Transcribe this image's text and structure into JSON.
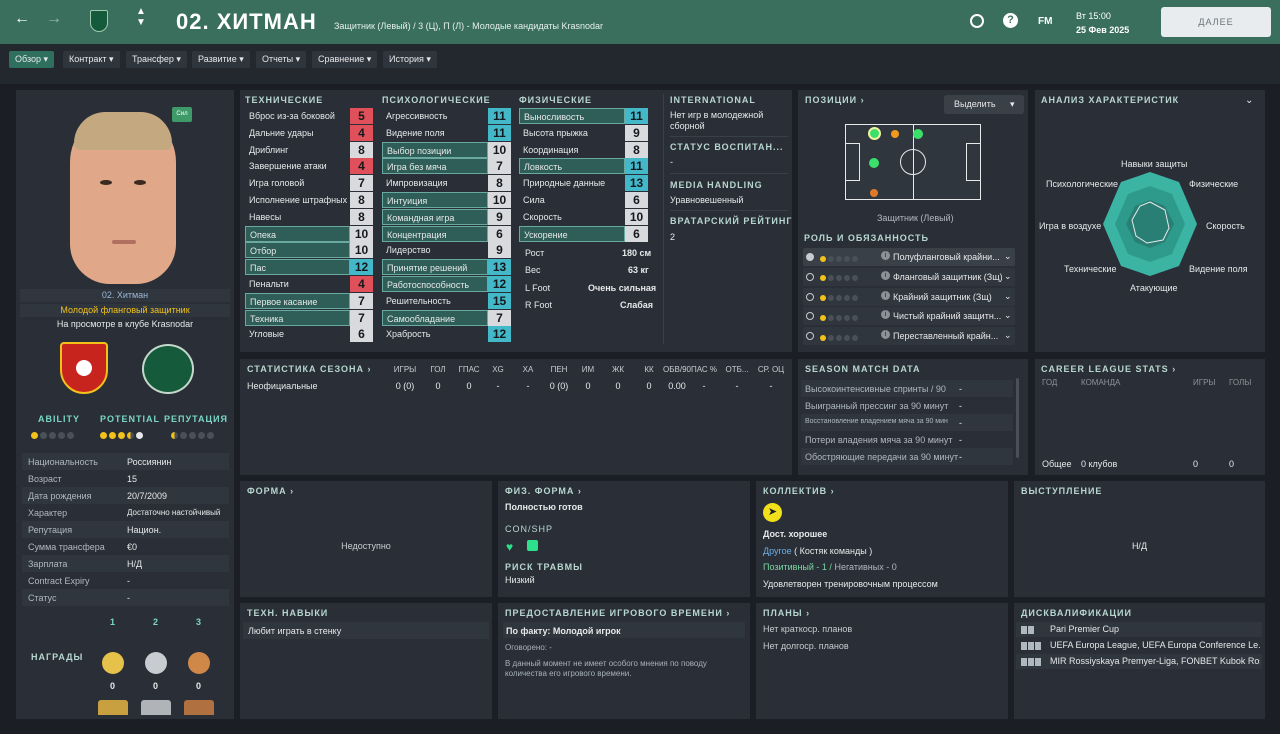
{
  "header": {
    "number_name": "02. ХИТМАН",
    "subtitle": "Защитник (Левый) / 3 (Ц), П (Л) - Молодые кандидаты Krasnodar",
    "date_line1": "Вт 15:00",
    "date_line2": "25 Фев 2025",
    "fm_label": "FM",
    "continue_label": "ДАЛЕЕ"
  },
  "tabs": [
    {
      "label": "Обзор"
    },
    {
      "label": "Контракт"
    },
    {
      "label": "Трансфер"
    },
    {
      "label": "Развитие"
    },
    {
      "label": "Отчеты"
    },
    {
      "label": "Сравнение"
    },
    {
      "label": "История"
    }
  ],
  "profile": {
    "badge": "Сил",
    "name": "02. Хитман",
    "role": "Молодой фланговый защитник",
    "status": "На просмотре в клубе Krasnodar",
    "ability_label": "ABILITY",
    "potential_label": "POTENTIAL",
    "reputation_label": "РЕПУТАЦИЯ",
    "ability_stars": 1,
    "potential_stars": 3.5,
    "reputation_stars": 0.5,
    "details": [
      {
        "label": "Национальность",
        "value": "Россиянин"
      },
      {
        "label": "Возраст",
        "value": "15"
      },
      {
        "label": "Дата рождения",
        "value": "20/7/2009"
      },
      {
        "label": "Характер",
        "value": "Достаточно настойчивый"
      },
      {
        "label": "Репутация",
        "value": "Национ."
      },
      {
        "label": "Сумма трансфера",
        "value": "€0"
      },
      {
        "label": "Зарплата",
        "value": "Н/Д"
      },
      {
        "label": "Contract Expiry",
        "value": "-"
      },
      {
        "label": "Статус",
        "value": "-"
      }
    ],
    "awards_label": "НАГРАДЫ",
    "awards": [
      {
        "place": "1",
        "count": "0"
      },
      {
        "place": "2",
        "count": "0"
      },
      {
        "place": "3",
        "count": "0"
      }
    ]
  },
  "attributes": {
    "technical_title": "ТЕХНИЧЕСКИЕ",
    "mental_title": "ПСИХОЛОГИЧЕСКИЕ",
    "physical_title": "ФИЗИЧЕСКИЕ",
    "technical": [
      {
        "name": "Вброс из-за боковой",
        "value": "5",
        "hl": false
      },
      {
        "name": "Дальние удары",
        "value": "4",
        "hl": false
      },
      {
        "name": "Дриблинг",
        "value": "8",
        "hl": false
      },
      {
        "name": "Завершение атаки",
        "value": "4",
        "hl": false
      },
      {
        "name": "Игра головой",
        "value": "7",
        "hl": false
      },
      {
        "name": "Исполнение штрафных",
        "value": "8",
        "hl": false
      },
      {
        "name": "Навесы",
        "value": "8",
        "hl": false
      },
      {
        "name": "Опека",
        "value": "10",
        "hl": true
      },
      {
        "name": "Отбор",
        "value": "10",
        "hl": true
      },
      {
        "name": "Пас",
        "value": "12",
        "hl": true
      },
      {
        "name": "Пенальти",
        "value": "4",
        "hl": false
      },
      {
        "name": "Первое касание",
        "value": "7",
        "hl": true
      },
      {
        "name": "Техника",
        "value": "7",
        "hl": true
      },
      {
        "name": "Угловые",
        "value": "6",
        "hl": false
      }
    ],
    "mental": [
      {
        "name": "Агрессивность",
        "value": "11",
        "hl": false
      },
      {
        "name": "Видение поля",
        "value": "11",
        "hl": false
      },
      {
        "name": "Выбор позиции",
        "value": "10",
        "hl": true
      },
      {
        "name": "Игра без мяча",
        "value": "7",
        "hl": true
      },
      {
        "name": "Импровизация",
        "value": "8",
        "hl": false
      },
      {
        "name": "Интуиция",
        "value": "10",
        "hl": true
      },
      {
        "name": "Командная игра",
        "value": "9",
        "hl": true
      },
      {
        "name": "Концентрация",
        "value": "6",
        "hl": true
      },
      {
        "name": "Лидерство",
        "value": "9",
        "hl": false
      },
      {
        "name": "Принятие решений",
        "value": "13",
        "hl": true
      },
      {
        "name": "Работоспособность",
        "value": "12",
        "hl": true
      },
      {
        "name": "Решительность",
        "value": "15",
        "hl": false
      },
      {
        "name": "Самообладание",
        "value": "7",
        "hl": true
      },
      {
        "name": "Храбрость",
        "value": "12",
        "hl": false
      }
    ],
    "physical": [
      {
        "name": "Выносливость",
        "value": "11",
        "hl": true
      },
      {
        "name": "Высота прыжка",
        "value": "9",
        "hl": false
      },
      {
        "name": "Координация",
        "value": "8",
        "hl": false
      },
      {
        "name": "Ловкость",
        "value": "11",
        "hl": true
      },
      {
        "name": "Природные данные",
        "value": "13",
        "hl": false
      },
      {
        "name": "Сила",
        "value": "6",
        "hl": false
      },
      {
        "name": "Скорость",
        "value": "10",
        "hl": false
      },
      {
        "name": "Ускорение",
        "value": "6",
        "hl": true
      }
    ],
    "height_label": "Рост",
    "height": "180 см",
    "weight_label": "Вес",
    "weight": "63 кг",
    "lfoot_label": "L Foot",
    "lfoot": "Очень сильная",
    "rfoot_label": "R Foot",
    "rfoot": "Слабая"
  },
  "side": {
    "international_title": "INTERNATIONAL",
    "international_text": "Нет игр в молодежной сборной",
    "upbringing_title": "СТАТУС ВОСПИТАН...",
    "upbringing_value": "-",
    "media_title": "MEDIA HANDLING",
    "media_value": "Уравновешенный",
    "gk_title": "ВРАТАРСКИЙ РЕЙТИНГ",
    "gk_value": "2"
  },
  "positions": {
    "title": "ПОЗИЦИИ",
    "highlight_btn": "Выделить",
    "caption": "Защитник (Левый)",
    "roles_title": "РОЛЬ И ОБЯЗАННОСТЬ",
    "roles": [
      {
        "name": "Полуфланговый крайни..."
      },
      {
        "name": "Фланговый защитник (Зщ)"
      },
      {
        "name": "Крайний защитник (Зщ)"
      },
      {
        "name": "Чистый крайний защитн..."
      },
      {
        "name": "Переставленный крайн..."
      }
    ]
  },
  "analysis": {
    "title": "АНАЛИЗ ХАРАКТЕРИСТИК",
    "labels": {
      "defense": "Навыки защиты",
      "physical": "Физические",
      "speed": "Скорость",
      "vision": "Видение поля",
      "attack": "Атакующие",
      "technical": "Технические",
      "aerial": "Игра в воздухе",
      "mental": "Психологические"
    }
  },
  "season": {
    "title": "СТАТИСТИКА СЕЗОНА",
    "cols": [
      "ИГРЫ",
      "ГОЛ",
      "ГПАС",
      "XG",
      "XA",
      "ПЕН",
      "ИМ",
      "ЖК",
      "КК",
      "ОБВ/90",
      "ПАС %",
      "ОТБ...",
      "СР. ОЦ"
    ],
    "row_label": "Неофициальные",
    "row": [
      "0 (0)",
      "0",
      "0",
      "-",
      "-",
      "0 (0)",
      "0",
      "0",
      "0",
      "0.00",
      "-",
      "-",
      "-"
    ]
  },
  "match_data": {
    "title": "SEASON MATCH DATA",
    "rows": [
      {
        "label": "Высокоинтенсивные спринты / 90",
        "value": "-"
      },
      {
        "label": "Выигранный прессинг за 90 минут",
        "value": "-"
      },
      {
        "label": "Восстановление владением мяча за 90 мин",
        "value": "-"
      },
      {
        "label": "Потери владения мяча за 90 минут",
        "value": "-"
      },
      {
        "label": "Обостряющие передачи за 90 минут",
        "value": "-"
      }
    ]
  },
  "career": {
    "title": "CAREER LEAGUE STATS",
    "col_year": "ГОД",
    "col_team": "КОМАНДА",
    "col_games": "ИГРЫ",
    "col_goals": "ГОЛЫ",
    "total_label": "Общее",
    "total_team": "0 клубов",
    "total_games": "0",
    "total_goals": "0"
  },
  "form": {
    "title": "ФОРМА",
    "value": "Недоступно"
  },
  "fitness": {
    "title": "ФИЗ. ФОРМА",
    "value": "Полностью готов",
    "con_label": "CON/SHP",
    "injury_title": "РИСК ТРАВМЫ",
    "injury_value": "Низкий"
  },
  "squad": {
    "title": "КОЛЛЕКТИВ",
    "morale": "Дост. хорошее",
    "group": "Другое",
    "group_role": "( Костяк команды )",
    "positive": "Позитивный - 1 /",
    "negative": "Негативных - 0",
    "training": "Удовлетворен тренировочным процессом"
  },
  "performance": {
    "title": "ВЫСТУПЛЕНИЕ",
    "value": "Н/Д"
  },
  "skills": {
    "title": "ТЕХН. НАВЫКИ",
    "value": "Любит играть в стенку"
  },
  "playing_time": {
    "title": "ПРЕДОСТАВЛЕНИЕ ИГРОВОГО ВРЕМЕНИ",
    "actual_label": "По факту:",
    "actual_value": "Молодой игрок",
    "agreed": "Оговорено: -",
    "note": "В данный момент не имеет особого мнения по поводу количества его игрового времени."
  },
  "plans": {
    "title": "ПЛАНЫ",
    "short": "Нет краткоср. планов",
    "long": "Нет долгоср. планов"
  },
  "discipline": {
    "title": "ДИСКВАЛИФИКАЦИИ",
    "rows": [
      {
        "name": "Pari Premier Cup"
      },
      {
        "name": "UEFA Europa League, UEFA Europa Conference Le..."
      },
      {
        "name": "MIR Rossiyskaya Premyer-Liga, FONBET Kubok Rossii"
      }
    ]
  }
}
